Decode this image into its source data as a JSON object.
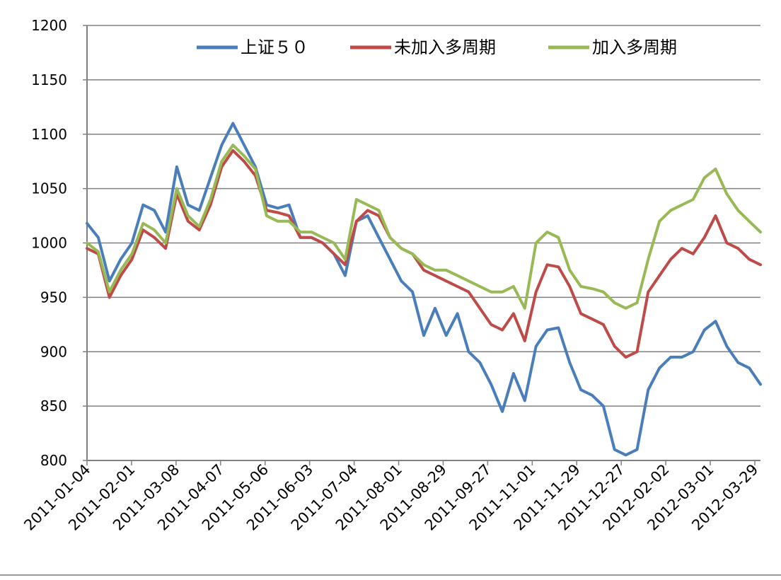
{
  "colors": {
    "series_blue": "#4a7ebb",
    "series_red": "#be4b48",
    "series_green": "#98b954",
    "grid": "#808080",
    "axis": "#808080"
  },
  "chart_data": {
    "type": "line",
    "title": "",
    "xlabel": "",
    "ylabel": "",
    "ylim": [
      800,
      1200
    ],
    "yticks": [
      800,
      850,
      900,
      950,
      1000,
      1050,
      1100,
      1150,
      1200
    ],
    "ytick_labels": [
      "800",
      "850",
      "900",
      "950",
      "1000",
      "1050",
      "1100",
      "1150",
      "1200"
    ],
    "grid": "horizontal",
    "legend_position": "top",
    "x_tick_labels": [
      "2011-01-04",
      "2011-02-01",
      "2011-03-08",
      "2011-04-07",
      "2011-05-06",
      "2011-06-03",
      "2011-07-04",
      "2011-08-01",
      "2011-08-29",
      "2011-09-27",
      "2011-11-01",
      "2011-11-29",
      "2011-12-27",
      "2012-02-02",
      "2012-03-01",
      "2012-03-29"
    ],
    "x": [
      "2011-01-04",
      "2011-01-11",
      "2011-01-18",
      "2011-01-25",
      "2011-02-01",
      "2011-02-15",
      "2011-02-22",
      "2011-03-01",
      "2011-03-08",
      "2011-03-15",
      "2011-03-22",
      "2011-03-29",
      "2011-04-07",
      "2011-04-14",
      "2011-04-21",
      "2011-04-28",
      "2011-05-06",
      "2011-05-13",
      "2011-05-20",
      "2011-05-27",
      "2011-06-03",
      "2011-06-13",
      "2011-06-20",
      "2011-06-27",
      "2011-07-04",
      "2011-07-11",
      "2011-07-18",
      "2011-07-25",
      "2011-08-01",
      "2011-08-08",
      "2011-08-15",
      "2011-08-22",
      "2011-08-29",
      "2011-09-05",
      "2011-09-13",
      "2011-09-20",
      "2011-09-27",
      "2011-10-11",
      "2011-10-18",
      "2011-10-25",
      "2011-11-01",
      "2011-11-08",
      "2011-11-15",
      "2011-11-22",
      "2011-11-29",
      "2011-12-06",
      "2011-12-13",
      "2011-12-20",
      "2011-12-27",
      "2012-01-05",
      "2012-01-12",
      "2012-01-19",
      "2012-02-02",
      "2012-02-09",
      "2012-02-16",
      "2012-02-23",
      "2012-03-01",
      "2012-03-08",
      "2012-03-15",
      "2012-03-22",
      "2012-03-29"
    ],
    "series": [
      {
        "name": "上证５０",
        "color": "#4a7ebb",
        "values": [
          1018,
          1005,
          965,
          985,
          1000,
          1035,
          1030,
          1010,
          1070,
          1035,
          1030,
          1060,
          1090,
          1110,
          1090,
          1070,
          1035,
          1032,
          1035,
          1005,
          1005,
          1000,
          990,
          970,
          1020,
          1025,
          1005,
          985,
          965,
          955,
          915,
          940,
          915,
          935,
          900,
          890,
          870,
          845,
          880,
          855,
          905,
          920,
          922,
          890,
          865,
          860,
          850,
          810,
          805,
          810,
          865,
          885,
          895,
          895,
          900,
          920,
          928,
          905,
          890,
          885,
          870
        ]
      },
      {
        "name": "未加入多周期",
        "color": "#be4b48",
        "values": [
          995,
          990,
          950,
          970,
          985,
          1012,
          1005,
          995,
          1045,
          1020,
          1012,
          1035,
          1070,
          1085,
          1075,
          1062,
          1030,
          1028,
          1025,
          1005,
          1005,
          1000,
          990,
          980,
          1020,
          1030,
          1025,
          1005,
          995,
          990,
          975,
          970,
          965,
          960,
          955,
          940,
          925,
          920,
          935,
          910,
          955,
          980,
          978,
          960,
          935,
          930,
          925,
          905,
          895,
          900,
          955,
          970,
          985,
          995,
          990,
          1005,
          1025,
          1000,
          995,
          985,
          980
        ]
      },
      {
        "name": "加入多周期",
        "color": "#98b954",
        "values": [
          1000,
          992,
          955,
          975,
          990,
          1018,
          1012,
          1000,
          1050,
          1025,
          1015,
          1040,
          1075,
          1090,
          1080,
          1068,
          1025,
          1020,
          1020,
          1010,
          1010,
          1005,
          1000,
          985,
          1040,
          1035,
          1030,
          1005,
          995,
          990,
          980,
          975,
          975,
          970,
          965,
          960,
          955,
          955,
          960,
          940,
          1000,
          1010,
          1005,
          975,
          960,
          958,
          955,
          945,
          940,
          945,
          985,
          1020,
          1030,
          1035,
          1040,
          1060,
          1068,
          1045,
          1030,
          1020,
          1010
        ]
      }
    ]
  }
}
